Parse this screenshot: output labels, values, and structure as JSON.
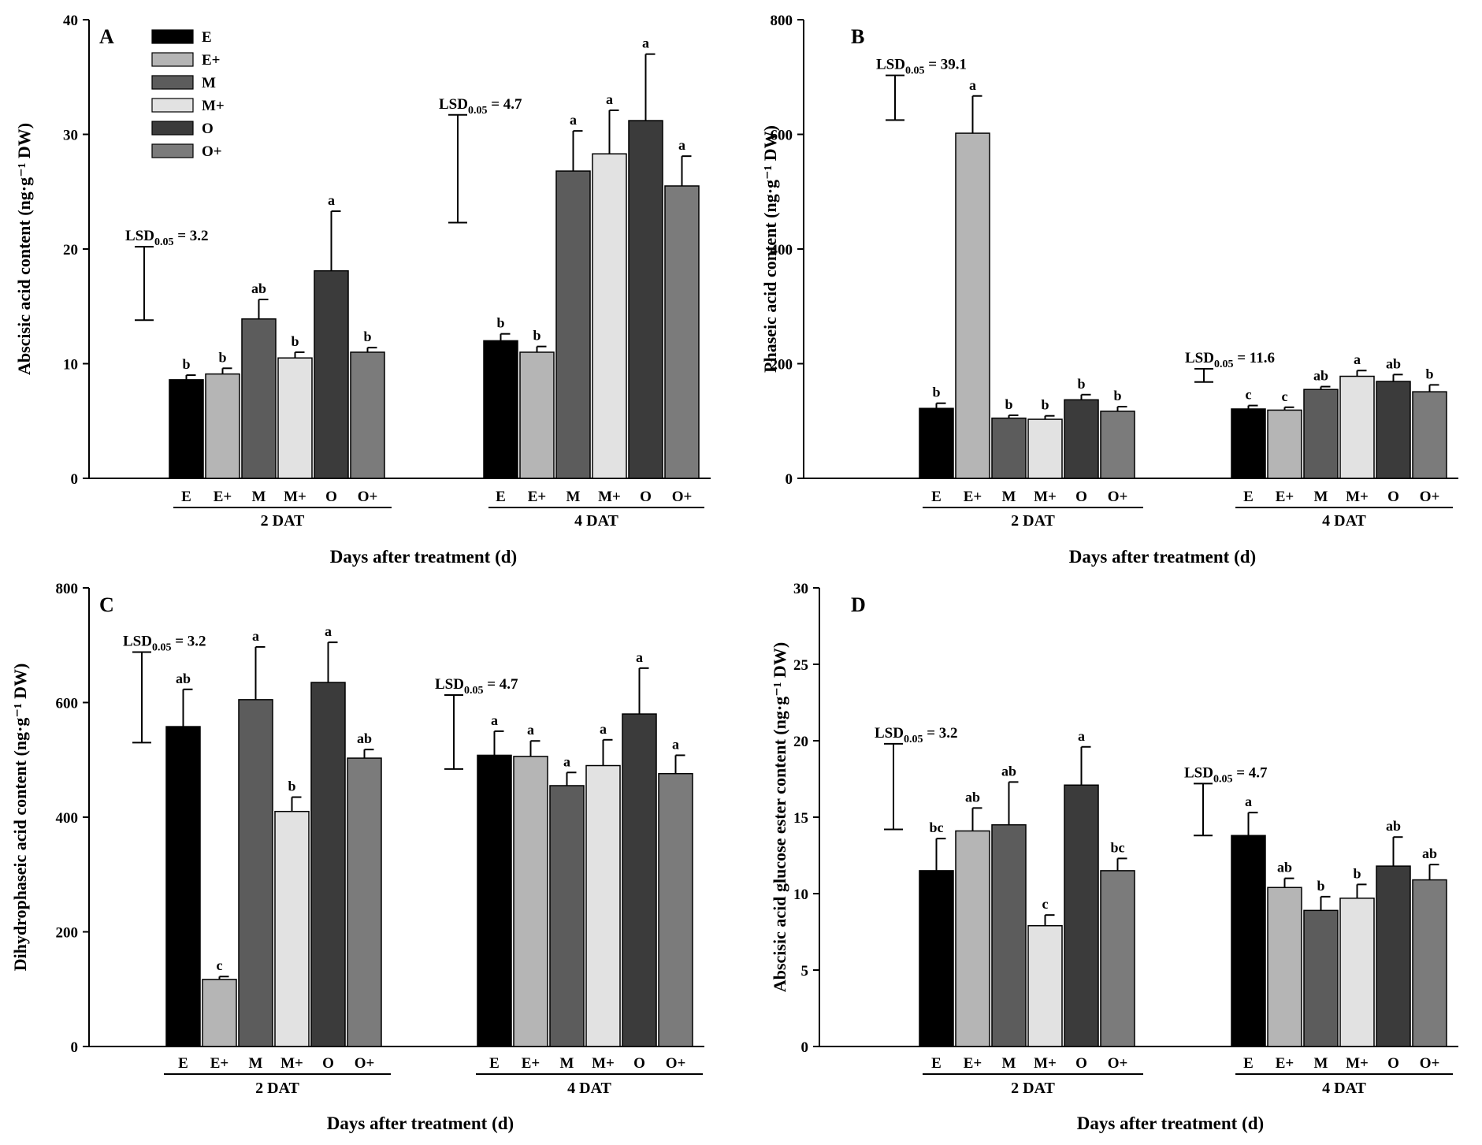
{
  "colors": {
    "E": "#000000",
    "E+": "#b5b5b5",
    "M": "#5c5c5c",
    "M+": "#e2e2e2",
    "O": "#3b3b3b",
    "O+": "#7b7b7b"
  },
  "legend": [
    "E",
    "E+",
    "M",
    "M+",
    "O",
    "O+"
  ],
  "chart_data": [
    {
      "type": "bar",
      "panel": "A",
      "ylabel": "Abscisic acid content (ng·g⁻¹ DW)",
      "xlabel": "Days after treatment (d)",
      "ylim": [
        0,
        40
      ],
      "yticks": [
        0,
        10,
        20,
        30,
        40
      ],
      "categories": [
        "E",
        "E+",
        "M",
        "M+",
        "O",
        "O+"
      ],
      "groups": [
        {
          "name": "2 DAT",
          "values": [
            8.6,
            9.1,
            13.9,
            10.5,
            18.1,
            11.0
          ],
          "errors": [
            0.4,
            0.5,
            1.7,
            0.5,
            5.2,
            0.4
          ],
          "letters": [
            "b",
            "b",
            "ab",
            "b",
            "a",
            "b"
          ],
          "lsd": {
            "label": "LSD",
            "sub": "0.05",
            "value": "= 3.2",
            "low": 13.8,
            "high": 20.2
          }
        },
        {
          "name": "4 DAT",
          "values": [
            12.0,
            11.0,
            26.8,
            28.3,
            31.2,
            25.5
          ],
          "errors": [
            0.6,
            0.5,
            3.5,
            3.8,
            5.8,
            2.6
          ],
          "letters": [
            "b",
            "b",
            "a",
            "a",
            "a",
            "a"
          ],
          "lsd": {
            "label": "LSD",
            "sub": "0.05",
            "value": "= 4.7",
            "low": 22.3,
            "high": 31.7
          }
        }
      ]
    },
    {
      "type": "bar",
      "panel": "B",
      "ylabel": "Phaseic acid content (ng·g⁻¹ DW)",
      "xlabel": "Days after treatment (d)",
      "ylim": [
        0,
        800
      ],
      "yticks": [
        0,
        200,
        400,
        600,
        800
      ],
      "categories": [
        "E",
        "E+",
        "M",
        "M+",
        "O",
        "O+"
      ],
      "groups": [
        {
          "name": "2 DAT",
          "values": [
            122,
            602,
            105,
            103,
            137,
            117
          ],
          "errors": [
            9,
            65,
            5,
            6,
            9,
            8
          ],
          "letters": [
            "b",
            "a",
            "b",
            "b",
            "b",
            "b"
          ],
          "lsd": {
            "label": "LSD",
            "sub": "0.05",
            "value": "= 39.1",
            "low": 625,
            "high": 703
          }
        },
        {
          "name": "4 DAT",
          "values": [
            121,
            119,
            155,
            178,
            169,
            151
          ],
          "errors": [
            6,
            5,
            5,
            10,
            12,
            12
          ],
          "letters": [
            "c",
            "c",
            "ab",
            "a",
            "ab",
            "b"
          ],
          "lsd": {
            "label": "LSD",
            "sub": "0.05",
            "value": "= 11.6",
            "low": 168,
            "high": 191
          }
        }
      ]
    },
    {
      "type": "bar",
      "panel": "C",
      "ylabel": "Dihydrophaseic acid content (ng·g⁻¹ DW)",
      "xlabel": "Days after treatment (d)",
      "ylim": [
        0,
        800
      ],
      "yticks": [
        0,
        200,
        400,
        600,
        800
      ],
      "categories": [
        "E",
        "E+",
        "M",
        "M+",
        "O",
        "O+"
      ],
      "groups": [
        {
          "name": "2 DAT",
          "values": [
            558,
            117,
            605,
            410,
            635,
            503
          ],
          "errors": [
            65,
            5,
            92,
            25,
            70,
            15
          ],
          "letters": [
            "ab",
            "c",
            "a",
            "b",
            "a",
            "ab"
          ],
          "lsd": {
            "label": "LSD",
            "sub": "0.05",
            "value": "= 3.2",
            "low": 530,
            "high": 688
          }
        },
        {
          "name": "4 DAT",
          "values": [
            508,
            506,
            455,
            490,
            580,
            476
          ],
          "errors": [
            42,
            27,
            23,
            45,
            80,
            32
          ],
          "letters": [
            "a",
            "a",
            "a",
            "a",
            "a",
            "a"
          ],
          "lsd": {
            "label": "LSD",
            "sub": "0.05",
            "value": "= 4.7",
            "low": 484,
            "high": 613
          }
        }
      ]
    },
    {
      "type": "bar",
      "panel": "D",
      "ylabel": "Abscisic acid glucose ester content (ng·g⁻¹ DW)",
      "xlabel": "Days after treatment (d)",
      "ylim": [
        0,
        30
      ],
      "yticks": [
        0,
        5,
        10,
        15,
        20,
        25,
        30
      ],
      "categories": [
        "E",
        "E+",
        "M",
        "M+",
        "O",
        "O+"
      ],
      "groups": [
        {
          "name": "2 DAT",
          "values": [
            11.5,
            14.1,
            14.5,
            7.9,
            17.1,
            11.5
          ],
          "errors": [
            2.1,
            1.5,
            2.8,
            0.7,
            2.5,
            0.8
          ],
          "letters": [
            "bc",
            "ab",
            "ab",
            "c",
            "a",
            "bc"
          ],
          "lsd": {
            "label": "LSD",
            "sub": "0.05",
            "value": "= 3.2",
            "low": 14.2,
            "high": 19.8
          }
        },
        {
          "name": "4 DAT",
          "values": [
            13.8,
            10.4,
            8.9,
            9.7,
            11.8,
            10.9
          ],
          "errors": [
            1.5,
            0.6,
            0.9,
            0.9,
            1.9,
            1.0
          ],
          "letters": [
            "a",
            "ab",
            "b",
            "b",
            "ab",
            "ab"
          ],
          "lsd": {
            "label": "LSD",
            "sub": "0.05",
            "value": "= 4.7",
            "low": 13.8,
            "high": 17.2
          }
        }
      ]
    }
  ]
}
